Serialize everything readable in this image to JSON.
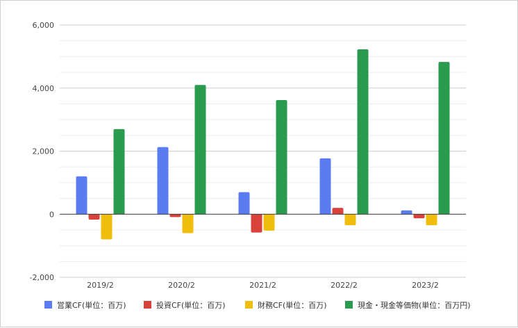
{
  "chart_data": {
    "type": "bar",
    "categories": [
      "2019/2",
      "2020/2",
      "2021/2",
      "2022/2",
      "2023/2"
    ],
    "series": [
      {
        "name": "営業CF(単位：百万)",
        "color": "#5b7cf0",
        "values": [
          1200,
          2130,
          700,
          1770,
          120
        ]
      },
      {
        "name": "投資CF(単位：百万)",
        "color": "#d9423b",
        "values": [
          -170,
          -90,
          -580,
          200,
          -130
        ]
      },
      {
        "name": "財務CF(単位：百万)",
        "color": "#f1bd0c",
        "values": [
          -800,
          -600,
          -520,
          -350,
          -350
        ]
      },
      {
        "name": "現金・現金等価物(単位：百万円)",
        "color": "#2a9a4e",
        "values": [
          2700,
          4100,
          3620,
          5230,
          4830
        ]
      }
    ],
    "y_ticks": [
      "6,000",
      "4,000",
      "2,000",
      "0",
      "-2,000"
    ],
    "y_tick_values": [
      6000,
      4000,
      2000,
      0,
      -2000
    ],
    "ylim": [
      -2000,
      6000
    ],
    "grid": true,
    "legend_position": "bottom"
  }
}
